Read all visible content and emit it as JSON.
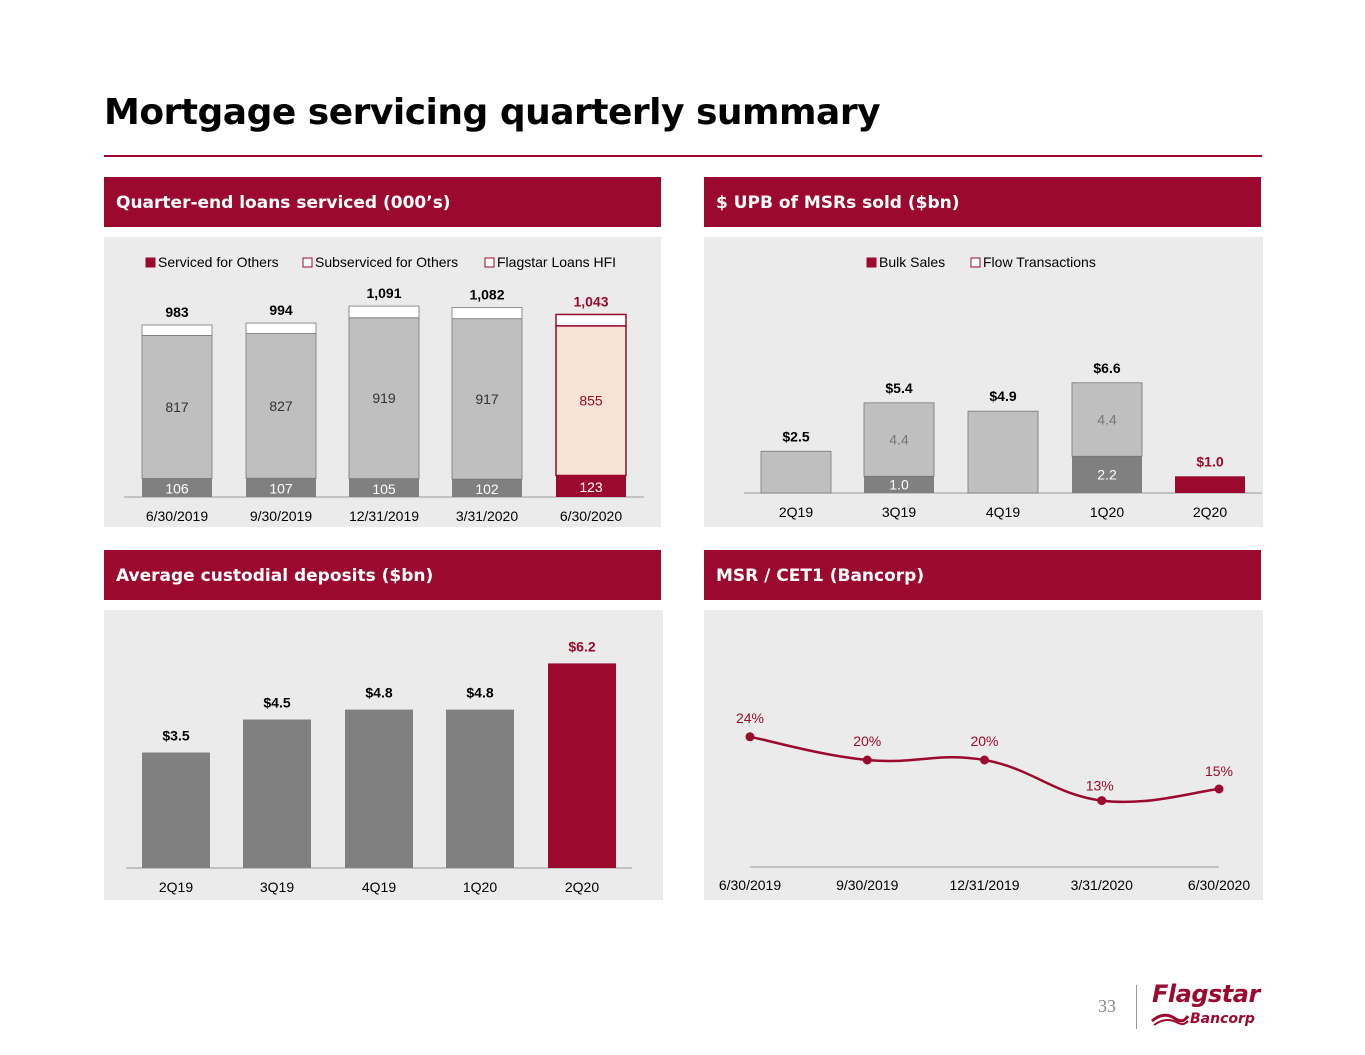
{
  "page": {
    "title": "Mortgage servicing quarterly summary",
    "page_number": "33",
    "logo_main": "Flagstar",
    "logo_sub": "Bancorp"
  },
  "colors": {
    "brand": "#9b0a2e",
    "dark_gray": "#808080",
    "light_gray": "#bfbfbf",
    "peach": "#f8e3d6",
    "white": "#ffffff",
    "panel_bg": "#ebebeb"
  },
  "panels": {
    "loans": {
      "header": "Quarter-end loans serviced (000’s)"
    },
    "upb": {
      "header": "$ UPB of MSRs sold ($bn)"
    },
    "deposits": {
      "header": "Average custodial deposits ($bn)"
    },
    "msr": {
      "header": "MSR / CET1 (Bancorp)"
    }
  },
  "chart_data": [
    {
      "id": "loans",
      "type": "bar",
      "stacked": true,
      "categories": [
        "6/30/2019",
        "9/30/2019",
        "12/31/2019",
        "3/31/2020",
        "6/30/2020"
      ],
      "legend": [
        "Serviced for Others",
        "Subserviced for Others",
        "Flagstar Loans HFI"
      ],
      "series": [
        {
          "name": "Flagstar Loans HFI",
          "values": [
            106,
            107,
            105,
            102,
            123
          ]
        },
        {
          "name": "Serviced for Others",
          "values": [
            817,
            827,
            919,
            917,
            855
          ]
        },
        {
          "name": "Subserviced for Others",
          "values": [
            60,
            60,
            67,
            63,
            65
          ]
        }
      ],
      "totals": [
        "983",
        "994",
        "1,091",
        "1,082",
        "1,043"
      ],
      "bottom_labels": [
        "106",
        "107",
        "105",
        "102",
        "123"
      ],
      "middle_labels": [
        "817",
        "827",
        "919",
        "917",
        "855"
      ],
      "ylim": [
        0,
        1200
      ]
    },
    {
      "id": "upb",
      "type": "bar",
      "stacked": true,
      "categories": [
        "2Q19",
        "3Q19",
        "4Q19",
        "1Q20",
        "2Q20"
      ],
      "legend": [
        "Bulk Sales",
        "Flow Transactions"
      ],
      "series": [
        {
          "name": "Bulk Sales",
          "values": [
            0,
            1.0,
            0,
            2.2,
            1.0
          ]
        },
        {
          "name": "Flow Transactions",
          "values": [
            2.5,
            4.4,
            4.9,
            4.4,
            0
          ]
        }
      ],
      "totals": [
        "$2.5",
        "$5.4",
        "$4.9",
        "$6.6",
        "$1.0"
      ],
      "inner_labels": [
        {
          "index": 1,
          "series": 0,
          "text": "1.0"
        },
        {
          "index": 1,
          "series": 1,
          "text": "4.4"
        },
        {
          "index": 3,
          "series": 0,
          "text": "2.2"
        },
        {
          "index": 3,
          "series": 1,
          "text": "4.4"
        }
      ],
      "ylim": [
        0,
        10
      ]
    },
    {
      "id": "deposits",
      "type": "bar",
      "categories": [
        "2Q19",
        "3Q19",
        "4Q19",
        "1Q20",
        "2Q20"
      ],
      "values": [
        3.5,
        4.5,
        4.8,
        4.8,
        6.2
      ],
      "labels": [
        "$3.5",
        "$4.5",
        "$4.8",
        "$4.8",
        "$6.2"
      ],
      "ylim": [
        0,
        7.5
      ]
    },
    {
      "id": "msr",
      "type": "line",
      "categories": [
        "6/30/2019",
        "9/30/2019",
        "12/31/2019",
        "3/31/2020",
        "6/30/2020"
      ],
      "values": [
        24,
        20,
        20,
        13,
        15
      ],
      "labels": [
        "24%",
        "20%",
        "20%",
        "13%",
        "15%"
      ],
      "ylim": [
        0,
        40
      ]
    }
  ]
}
